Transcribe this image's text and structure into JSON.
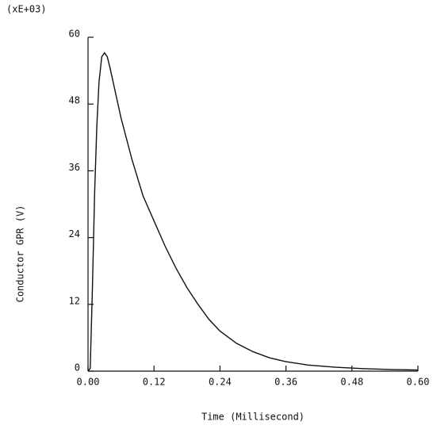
{
  "chart_data": {
    "type": "line",
    "multiplier_label": "(xE+03)",
    "xlabel": "Time (Millisecond)",
    "ylabel": "Conductor GPR (V)",
    "x": [
      0.0,
      0.004,
      0.008,
      0.012,
      0.016,
      0.02,
      0.025,
      0.03,
      0.035,
      0.04,
      0.05,
      0.06,
      0.08,
      0.1,
      0.12,
      0.14,
      0.16,
      0.18,
      0.2,
      0.22,
      0.24,
      0.27,
      0.3,
      0.33,
      0.36,
      0.4,
      0.45,
      0.5,
      0.55,
      0.6
    ],
    "series": [
      {
        "color": "#111111",
        "values": [
          0,
          0.5,
          15,
          32,
          44,
          52,
          56.5,
          57.2,
          56.5,
          54.5,
          50,
          45.5,
          38,
          31.5,
          27,
          22.5,
          18.5,
          15,
          12,
          9.3,
          7.2,
          5,
          3.5,
          2.4,
          1.7,
          1.1,
          0.7,
          0.45,
          0.3,
          0.2
        ]
      }
    ],
    "xlim": [
      0,
      0.6
    ],
    "xticks": [
      {
        "value": 0,
        "label": "0.00"
      },
      0.12,
      0.24,
      0.36,
      0.48,
      {
        "value": 0.6,
        "label": "0.60"
      }
    ],
    "ylim": [
      0,
      60
    ],
    "yticks": [
      0,
      12,
      24,
      36,
      48,
      60
    ]
  }
}
